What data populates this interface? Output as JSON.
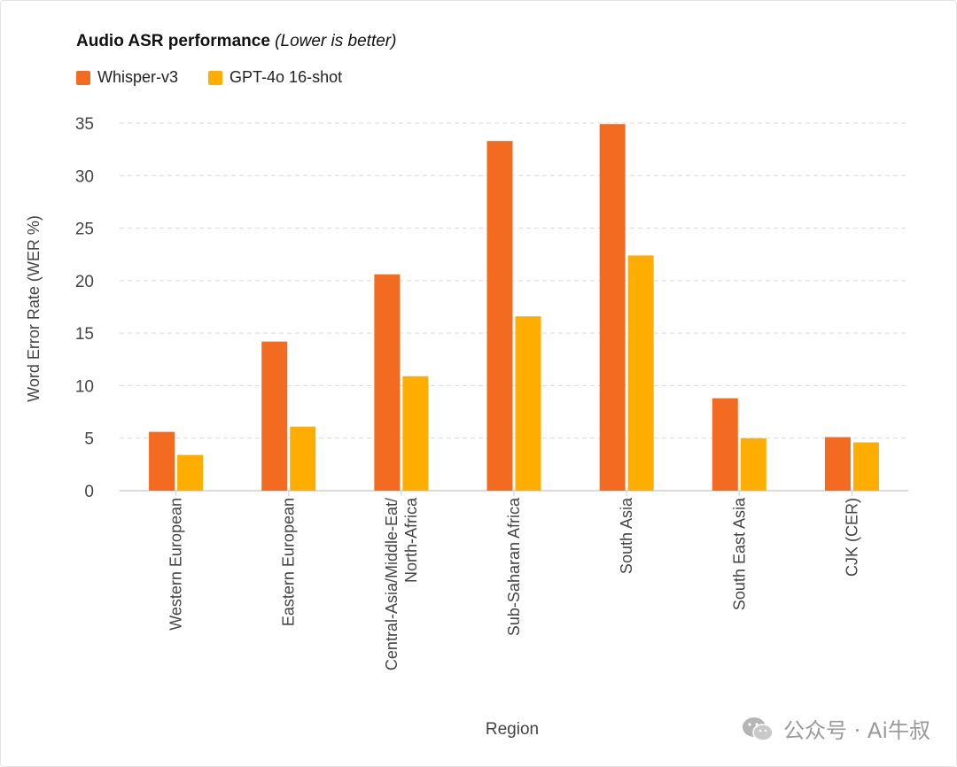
{
  "chart_data": {
    "type": "bar",
    "title": "Audio ASR performance",
    "subtitle": "(Lower is better)",
    "xlabel": "Region",
    "ylabel": "Word Error Rate (WER %)",
    "ylim": [
      0,
      35
    ],
    "yticks": [
      0,
      5,
      10,
      15,
      20,
      25,
      30,
      35
    ],
    "grid": true,
    "legend_position": "top-left",
    "categories": [
      [
        "Western European"
      ],
      [
        "Eastern European"
      ],
      [
        "Central-Asia/Middle-Eat/",
        "North-Africa"
      ],
      [
        "Sub-Saharan Africa"
      ],
      [
        "South Asia"
      ],
      [
        "South East Asia"
      ],
      [
        "CJK (CER)"
      ]
    ],
    "series": [
      {
        "name": "Whisper-v3",
        "color": "#f36b21",
        "values": [
          5.6,
          14.2,
          20.6,
          33.3,
          34.9,
          8.8,
          5.1
        ]
      },
      {
        "name": "GPT-4o 16-shot",
        "color": "#ffad00",
        "values": [
          3.4,
          6.1,
          10.9,
          16.6,
          22.4,
          5.0,
          4.6
        ]
      }
    ]
  },
  "watermark": {
    "text": "公众号 · Ai牛叔",
    "icon": "wechat-icon"
  }
}
